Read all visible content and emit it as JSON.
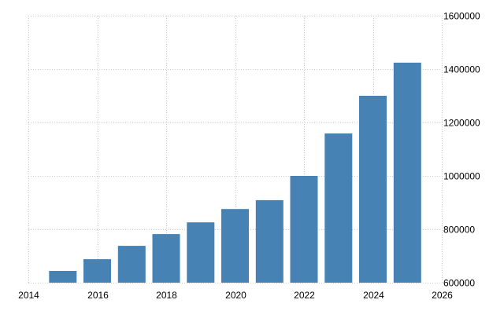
{
  "chart_data": {
    "type": "bar",
    "title": "",
    "xlabel": "",
    "ylabel": "",
    "categories": [
      2015,
      2016,
      2017,
      2018,
      2019,
      2020,
      2021,
      2022,
      2023,
      2024,
      2025
    ],
    "values": [
      644000,
      688000,
      738000,
      782000,
      826000,
      876000,
      909000,
      1000000,
      1159000,
      1300000,
      1424000
    ],
    "xlim": [
      2014,
      2026
    ],
    "ylim": [
      600000,
      1600000
    ],
    "x_ticks": [
      "2014",
      "2016",
      "2018",
      "2020",
      "2022",
      "2024",
      "2026"
    ],
    "y_ticks": [
      "600000",
      "800000",
      "1000000",
      "1200000",
      "1400000",
      "1600000"
    ],
    "y_axis_position": "right",
    "grid": true,
    "legend": "none",
    "bar_color": "#4682b4"
  }
}
